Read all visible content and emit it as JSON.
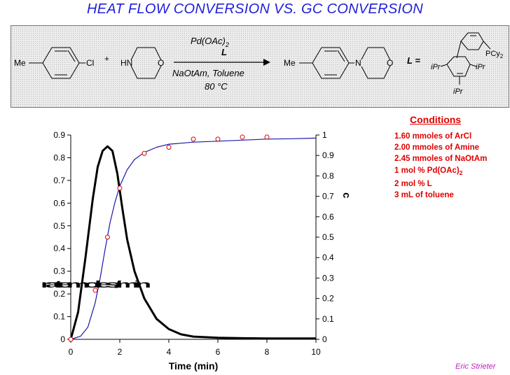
{
  "title": "HEAT FLOW CONVERSION VS. GC CONVERSION",
  "scheme": {
    "reactant1_sub": "Me",
    "reactant1_halide": "Cl",
    "plus": "+",
    "amine_nh": "HN",
    "amine_o": "O",
    "catalyst": "Pd(OAc)",
    "catalyst_sub": "2",
    "ligand_label": "L",
    "base_solvent": "NaOtAm, Toluene",
    "temperature": "80 °C",
    "product_sub": "Me",
    "product_n": "N",
    "product_o": "O",
    "ligand_eq": "L =",
    "ligand_pcy": "PCy",
    "ligand_pcy_sub": "2",
    "ligand_ipr_left": "iPr",
    "ligand_ipr_right": "iPr",
    "ligand_ipr_bottom": "iPr"
  },
  "conditions": {
    "title": "Conditions",
    "items": [
      "1.60 mmoles of ArCl",
      "2.00 mmoles of Amine",
      "2.45 mmoles of NaOtAm",
      "1 mol % Pd(OAc)",
      "2 mol % L",
      "3 mL of toluene"
    ],
    "item4_sub": "2"
  },
  "author": "Eric Strieter",
  "chart_data": {
    "type": "line",
    "xlabel": "Time (min)",
    "xlim": [
      0,
      10
    ],
    "xticks": [
      0,
      2,
      4,
      6,
      8,
      10
    ],
    "ylim_left": [
      0,
      0.9
    ],
    "yticks_left": [
      0,
      0.1,
      0.2,
      0.3,
      0.4,
      0.5,
      0.6,
      0.7,
      0.8,
      0.9
    ],
    "ylim_right": [
      0,
      1
    ],
    "yticks_right": [
      0,
      0.1,
      0.2,
      0.3,
      0.4,
      0.5,
      0.6,
      0.7,
      0.8,
      0.9,
      1
    ],
    "right_axis_label": "c",
    "left_axis_label_garbled": "ratemoles/min",
    "series": [
      {
        "axis": "left",
        "color": "#000000",
        "x": [
          0,
          0.3,
          0.6,
          0.9,
          1.1,
          1.3,
          1.5,
          1.7,
          1.9,
          2.1,
          2.3,
          2.6,
          3.0,
          3.5,
          4.0,
          4.5,
          5.0,
          6.0,
          7.0,
          8.0,
          9.0,
          10.0
        ],
        "values": [
          0,
          0.12,
          0.36,
          0.62,
          0.76,
          0.83,
          0.85,
          0.83,
          0.73,
          0.58,
          0.44,
          0.3,
          0.18,
          0.09,
          0.045,
          0.022,
          0.012,
          0.007,
          0.005,
          0.004,
          0.004,
          0.004
        ]
      },
      {
        "axis": "right",
        "color": "#1a1aa8",
        "x": [
          0,
          0.4,
          0.7,
          1.0,
          1.2,
          1.4,
          1.6,
          1.8,
          2.0,
          2.3,
          2.6,
          3.0,
          3.5,
          4.0,
          4.5,
          5.0,
          6.0,
          7.0,
          8.0,
          9.0,
          10.0
        ],
        "values": [
          0,
          0.015,
          0.06,
          0.18,
          0.3,
          0.44,
          0.57,
          0.67,
          0.75,
          0.83,
          0.88,
          0.915,
          0.94,
          0.955,
          0.96,
          0.965,
          0.97,
          0.975,
          0.98,
          0.982,
          0.985
        ]
      },
      {
        "axis": "right",
        "type": "scatter",
        "color": "#e00000",
        "x": [
          0,
          1,
          1.5,
          2,
          3,
          4,
          5,
          6,
          7,
          8
        ],
        "values": [
          0,
          0.24,
          0.5,
          0.74,
          0.91,
          0.94,
          0.98,
          0.98,
          0.99,
          0.99
        ]
      }
    ]
  }
}
